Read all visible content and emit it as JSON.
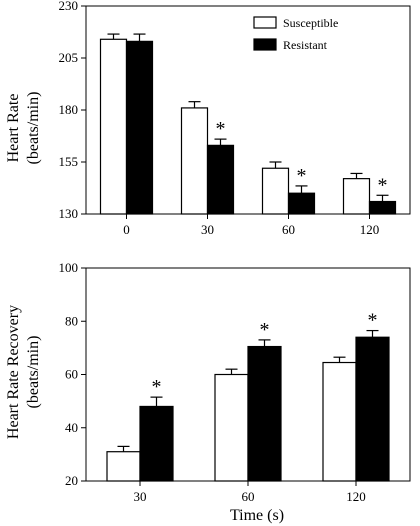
{
  "chart_data": [
    {
      "type": "bar",
      "ylabel_line1": "Heart Rate",
      "ylabel_line2": "(beats/min)",
      "categories": [
        "0",
        "30",
        "60",
        "120"
      ],
      "series": [
        {
          "name": "Susceptible",
          "values": [
            214,
            181,
            152,
            147
          ],
          "errors": [
            2.5,
            3,
            3,
            2.5
          ],
          "color": "#ffffff"
        },
        {
          "name": "Resistant",
          "values": [
            213,
            163,
            140,
            136
          ],
          "errors": [
            3.5,
            3,
            3.5,
            3
          ],
          "color": "#000000"
        }
      ],
      "significant": [
        "",
        "*",
        "*",
        "*"
      ],
      "ylim": [
        130,
        230
      ],
      "yticks": [
        "130",
        "155",
        "180",
        "205",
        "230"
      ],
      "legend": "top-right"
    },
    {
      "type": "bar",
      "ylabel_line1": "Heart Rate Recovery",
      "ylabel_line2": "(beats/min)",
      "xlabel": "Time (s)",
      "categories": [
        "30",
        "60",
        "120"
      ],
      "series": [
        {
          "name": "Susceptible",
          "values": [
            31,
            60,
            64.5
          ],
          "errors": [
            2,
            2,
            2
          ],
          "color": "#ffffff"
        },
        {
          "name": "Resistant",
          "values": [
            48,
            70.5,
            74
          ],
          "errors": [
            3.5,
            2.5,
            2.5
          ],
          "color": "#000000"
        }
      ],
      "significant": [
        "*",
        "*",
        "*"
      ],
      "ylim": [
        20,
        100
      ],
      "yticks": [
        "20",
        "40",
        "60",
        "80",
        "100"
      ]
    }
  ]
}
